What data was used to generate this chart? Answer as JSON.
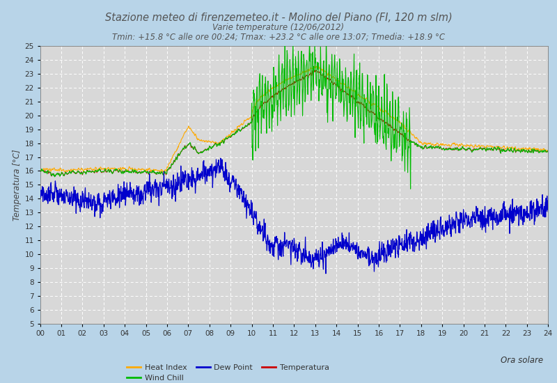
{
  "title": "Stazione meteo di firenzemeteo.it - Molino del Piano (FI, 120 m slm)",
  "subtitle1": "Varie temperature (12/06/2012)",
  "subtitle2": "Tmin: +15.8 °C alle ore 00:24; Tmax: +23.2 °C alle ore 13:07; Tmedia: +18.9 °C",
  "ylabel": "Temperatura [°C]",
  "xlabel_right": "Ora solare",
  "ylim": [
    5,
    25
  ],
  "bg_color": "#b8d4e8",
  "plot_bg_color": "#d8d8d8",
  "grid_color": "#ffffff",
  "title_color": "#555555",
  "tick_labels": [
    "00",
    "01",
    "02",
    "03",
    "04",
    "05",
    "06",
    "07",
    "08",
    "09",
    "10",
    "11",
    "12",
    "13",
    "14",
    "15",
    "16",
    "17",
    "18",
    "19",
    "20",
    "21",
    "22",
    "23",
    "24"
  ]
}
